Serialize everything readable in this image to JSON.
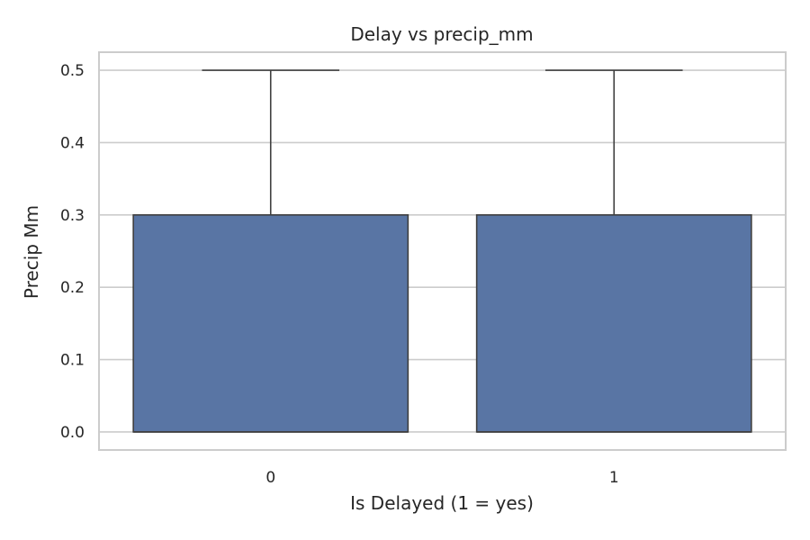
{
  "chart_data": {
    "type": "box",
    "title": "Delay vs precip_mm",
    "xlabel": "Is Delayed (1 = yes)",
    "ylabel": "Precip Mm",
    "categories": [
      "0",
      "1"
    ],
    "boxes": [
      {
        "category": "0",
        "whisker_low": 0.0,
        "q1": 0.0,
        "median": 0.0,
        "q3": 0.3,
        "whisker_high": 0.5
      },
      {
        "category": "1",
        "whisker_low": 0.0,
        "q1": 0.0,
        "median": 0.0,
        "q3": 0.3,
        "whisker_high": 0.5
      }
    ],
    "ylim": [
      -0.025,
      0.525
    ],
    "yticks": [
      "0.0",
      "0.1",
      "0.2",
      "0.3",
      "0.4",
      "0.5"
    ],
    "grid": true,
    "colors": {
      "box_fill": "#5975a4",
      "box_edge": "#3f3f3f",
      "grid": "#cccccc",
      "frame": "#cccccc"
    }
  }
}
